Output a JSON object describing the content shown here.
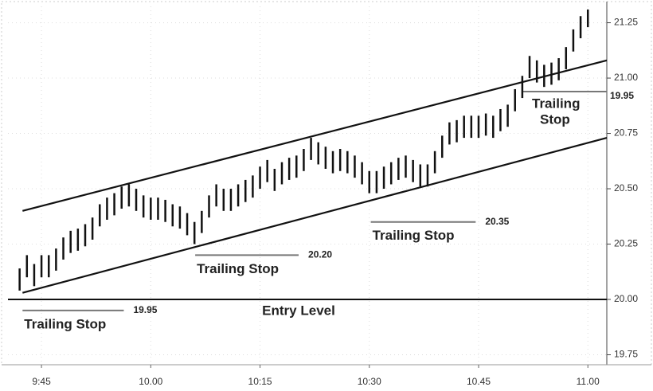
{
  "chart_data": {
    "type": "ohlc",
    "xlim": [
      580.4,
      662.6
    ],
    "xticks": [
      {
        "value": 585,
        "label": "9:45"
      },
      {
        "value": 600,
        "label": "10.00"
      },
      {
        "value": 615,
        "label": "10:15"
      },
      {
        "value": 630,
        "label": "10:30"
      },
      {
        "value": 645,
        "label": "10.45"
      },
      {
        "value": 660,
        "label": "11.00"
      }
    ],
    "ylim": [
      19.705,
      21.324
    ],
    "yticks": [
      21.25,
      {
        "value": 21.0,
        "label": "21.00"
      },
      20.75,
      {
        "value": 20.5,
        "label": "20.50"
      },
      20.25,
      {
        "value": 20.0,
        "label": "20.00"
      },
      19.75
    ],
    "grid": true,
    "color": "#111111",
    "x": [
      582,
      583,
      584,
      585,
      586,
      587,
      588,
      589,
      590,
      591,
      592,
      593,
      594,
      595,
      596,
      597,
      598,
      599,
      600,
      601,
      602,
      603,
      604,
      605,
      606,
      607,
      608,
      609,
      610,
      611,
      612,
      613,
      614,
      615,
      616,
      617,
      618,
      619,
      620,
      621,
      622,
      623,
      624,
      625,
      626,
      627,
      628,
      629,
      630,
      631,
      632,
      633,
      634,
      635,
      636,
      637,
      638,
      639,
      640,
      641,
      642,
      643,
      644,
      645,
      646,
      647,
      648,
      649,
      650,
      651,
      652,
      653,
      654,
      655,
      656,
      657,
      658,
      659,
      660
    ],
    "high": [
      20.14,
      20.2,
      20.16,
      20.2,
      20.2,
      20.23,
      20.28,
      20.31,
      20.32,
      20.34,
      20.37,
      20.43,
      20.46,
      20.48,
      20.51,
      20.52,
      20.5,
      20.47,
      20.46,
      20.46,
      20.45,
      20.43,
      20.42,
      20.39,
      20.35,
      20.4,
      20.47,
      20.52,
      20.5,
      20.5,
      20.52,
      20.54,
      20.56,
      20.6,
      20.63,
      20.59,
      20.62,
      20.64,
      20.65,
      20.68,
      20.73,
      20.71,
      20.69,
      20.67,
      20.68,
      20.67,
      20.65,
      20.62,
      20.58,
      20.58,
      20.6,
      20.62,
      20.64,
      20.65,
      20.63,
      20.61,
      20.61,
      20.67,
      20.74,
      20.8,
      20.81,
      20.83,
      20.83,
      20.83,
      20.84,
      20.83,
      20.86,
      20.88,
      20.95,
      21.01,
      21.1,
      21.08,
      21.06,
      21.07,
      21.09,
      21.14,
      21.22,
      21.28,
      21.31
    ],
    "low": [
      20.04,
      20.1,
      20.06,
      20.1,
      20.1,
      20.13,
      20.18,
      20.21,
      20.22,
      20.24,
      20.27,
      20.33,
      20.36,
      20.38,
      20.41,
      20.42,
      20.4,
      20.37,
      20.36,
      20.36,
      20.35,
      20.33,
      20.32,
      20.29,
      20.25,
      20.3,
      20.37,
      20.42,
      20.4,
      20.4,
      20.42,
      20.44,
      20.46,
      20.5,
      20.53,
      20.49,
      20.52,
      20.54,
      20.55,
      20.58,
      20.63,
      20.61,
      20.59,
      20.57,
      20.58,
      20.57,
      20.55,
      20.52,
      20.48,
      20.48,
      20.5,
      20.52,
      20.54,
      20.55,
      20.53,
      20.51,
      20.51,
      20.57,
      20.64,
      20.7,
      20.71,
      20.73,
      20.73,
      20.73,
      20.74,
      20.73,
      20.76,
      20.78,
      20.85,
      20.91,
      21.0,
      20.98,
      20.96,
      20.97,
      20.99,
      21.04,
      21.12,
      21.18,
      21.23
    ],
    "channel": {
      "x": [
        582.4,
        662.6
      ],
      "upper": [
        20.4,
        21.08
      ],
      "lower": [
        20.03,
        20.73
      ]
    },
    "entry_level": 20.0,
    "entry_label": "Entry Level",
    "stops": [
      {
        "text": "Trailing Stop",
        "value": 19.95,
        "value_label": "19.95",
        "x": [
          582.4,
          596.3
        ]
      },
      {
        "text": "Trailing Stop",
        "value": 20.2,
        "value_label": "20.20",
        "x": [
          606.1,
          620.3
        ]
      },
      {
        "text": "Trailing Stop",
        "value": 20.35,
        "value_label": "20.35",
        "x": [
          630.2,
          644.6
        ]
      }
    ],
    "last_stop": {
      "text": [
        "Trailing",
        "Stop"
      ],
      "value_label": "19.95"
    }
  }
}
